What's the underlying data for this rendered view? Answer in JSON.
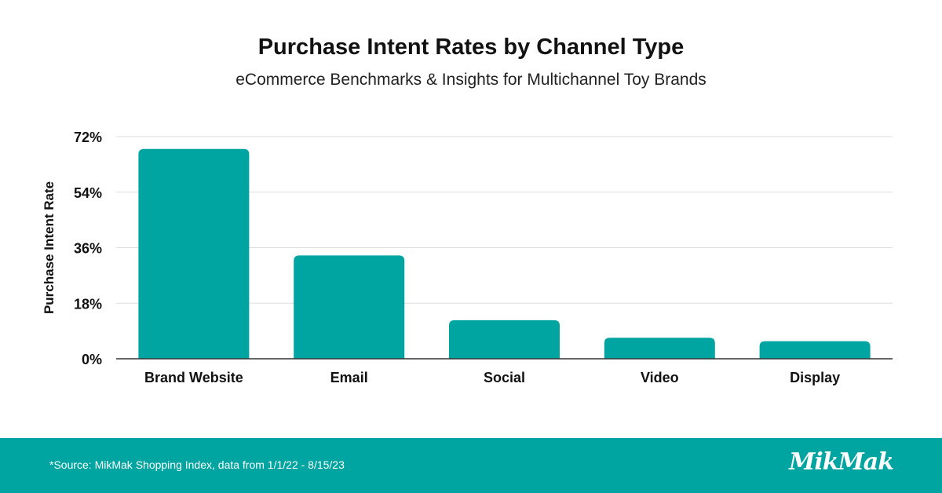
{
  "header": {
    "title": "Purchase Intent Rates by Channel Type",
    "subtitle": "eCommerce Benchmarks & Insights for Multichannel Toy Brands"
  },
  "footer": {
    "source": "*Source: MikMak Shopping Index, data from 1/1/22 - 8/15/23",
    "logo_text": "MikMak"
  },
  "colors": {
    "bar": "#00a4a0",
    "footer_bg": "#00a4a0",
    "grid": "#dddddd",
    "axis": "#333333"
  },
  "chart_data": {
    "type": "bar",
    "categories": [
      "Brand Website",
      "Email",
      "Social",
      "Video",
      "Display"
    ],
    "values": [
      68,
      33.5,
      12.5,
      6.8,
      5.7
    ],
    "title": "",
    "xlabel": "",
    "ylabel": "Purchase Intent Rate",
    "ylim": [
      0,
      72
    ],
    "yticks": [
      0,
      18,
      36,
      54,
      72
    ],
    "ytick_labels": [
      "0%",
      "18%",
      "36%",
      "54%",
      "72%"
    ],
    "grid": true,
    "legend": "none"
  }
}
